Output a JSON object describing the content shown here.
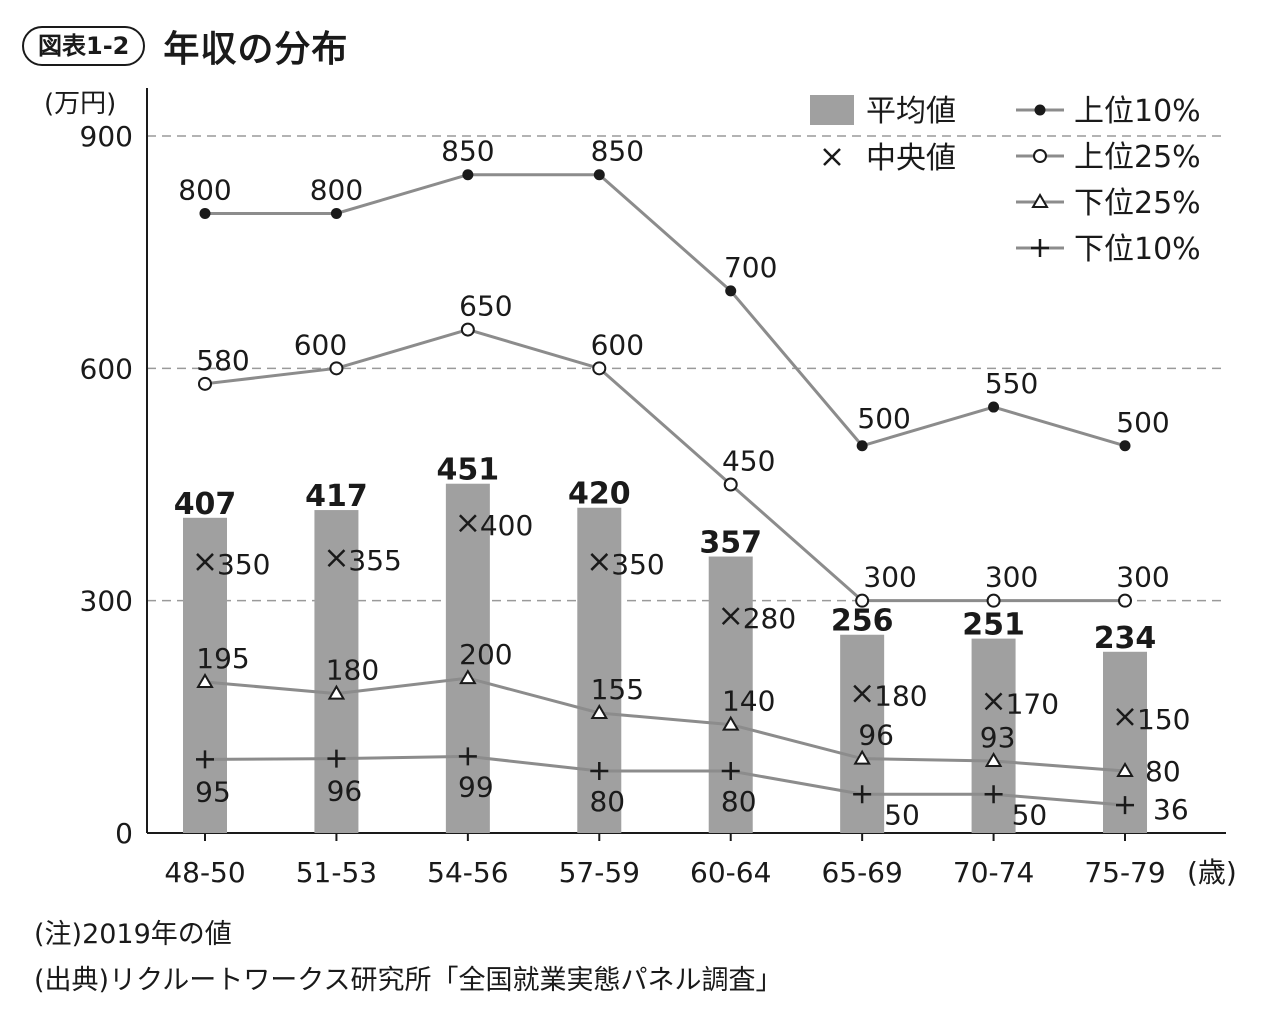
{
  "figure": {
    "badge": "図表1-2",
    "title": "年収の分布"
  },
  "notes": {
    "note": "(注)2019年の値",
    "source": "(出典)リクルートワークス研究所「全国就業実態パネル調査」"
  },
  "chart_data": {
    "type": "bar",
    "title": "年収の分布",
    "y_unit_label": "(万円)",
    "x_unit_label": "(歳)",
    "categories": [
      "48-50",
      "51-53",
      "54-56",
      "57-59",
      "60-64",
      "65-69",
      "70-74",
      "75-79"
    ],
    "ylim": [
      0,
      900
    ],
    "yticks": [
      "0",
      "300",
      "600",
      "900"
    ],
    "grid": "dashed horizontal at 300, 600, 900",
    "legend_position": "top-right",
    "bars": {
      "name": "平均値",
      "values": [
        407,
        417,
        451,
        420,
        357,
        256,
        251,
        234
      ],
      "labels": [
        "407",
        "417",
        "451",
        "420",
        "357",
        "256",
        "251",
        "234"
      ]
    },
    "median": {
      "name": "中央値",
      "marker": "x-icon",
      "values": [
        350,
        355,
        400,
        350,
        280,
        180,
        170,
        150
      ],
      "labels": [
        "350",
        "355",
        "400",
        "350",
        "280",
        "180",
        "170",
        "150"
      ]
    },
    "series": [
      {
        "name": "上位10%",
        "marker": "filled-circle",
        "values": [
          800,
          800,
          850,
          850,
          700,
          500,
          550,
          500
        ],
        "labels": [
          "800",
          "800",
          "850",
          "850",
          "700",
          "500",
          "550",
          "500"
        ]
      },
      {
        "name": "上位25%",
        "marker": "open-circle",
        "values": [
          580,
          600,
          650,
          600,
          450,
          300,
          300,
          300
        ],
        "labels": [
          "580",
          "600",
          "650",
          "600",
          "450",
          "300",
          "300",
          "300"
        ]
      },
      {
        "name": "下位25%",
        "marker": "open-triangle",
        "values": [
          195,
          180,
          200,
          155,
          140,
          96,
          93,
          80
        ],
        "labels": [
          "195",
          "180",
          "200",
          "155",
          "140",
          "96",
          "93",
          "80"
        ]
      },
      {
        "name": "下位10%",
        "marker": "plus",
        "values": [
          95,
          96,
          99,
          80,
          80,
          50,
          50,
          36
        ],
        "labels": [
          "95",
          "96",
          "99",
          "80",
          "80",
          "50",
          "50",
          "36"
        ]
      }
    ],
    "colors": {
      "bar": "#a0a0a0",
      "line": "#8c8c8c",
      "grid": "#9a9a9a",
      "text": "#1a1a1a"
    }
  }
}
